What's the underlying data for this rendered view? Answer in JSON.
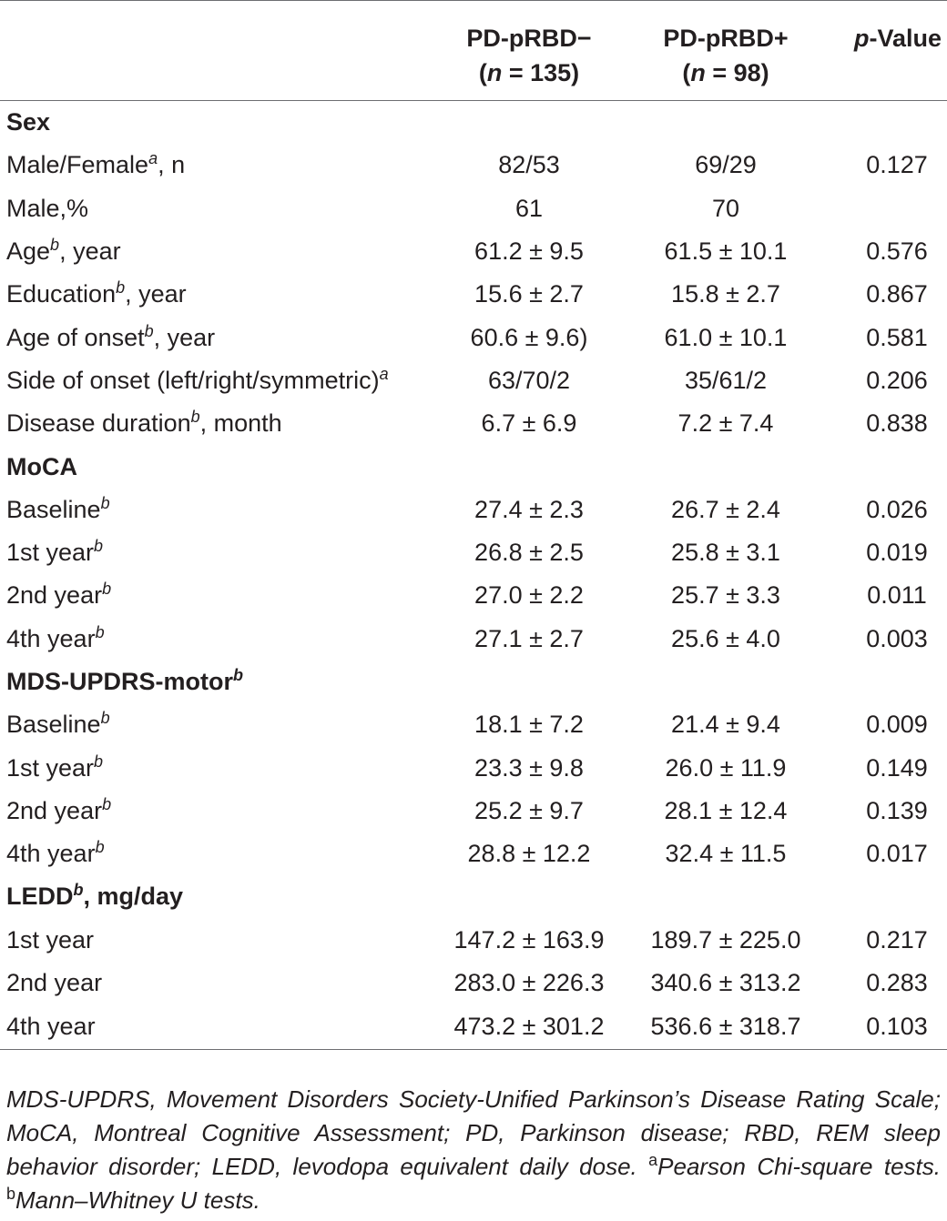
{
  "header": {
    "group1_line1": "PD-pRBD−",
    "group1_n_label": "n",
    "group1_n_value": " = 135)",
    "group2_line1": "PD-pRBD+",
    "group2_n_label": "n",
    "group2_n_value": " = 98)",
    "pvalue_italic": "p",
    "pvalue_rest": "-Value"
  },
  "rows": [
    {
      "type": "section",
      "label": "Sex",
      "sup": "",
      "suffix": ""
    },
    {
      "type": "data",
      "label": "Male/Female",
      "sup": "a",
      "suffix": ", n",
      "g1": "82/53",
      "g2": "69/29",
      "p": "0.127"
    },
    {
      "type": "data",
      "label": "Male,%",
      "sup": "",
      "suffix": "",
      "g1": "61",
      "g2": "70",
      "p": ""
    },
    {
      "type": "data",
      "label": "Age",
      "sup": "b",
      "suffix": ", year",
      "g1": "61.2 ± 9.5",
      "g2": "61.5 ± 10.1",
      "p": "0.576"
    },
    {
      "type": "data",
      "label": "Education",
      "sup": "b",
      "suffix": ", year",
      "g1": "15.6 ± 2.7",
      "g2": "15.8 ± 2.7",
      "p": "0.867"
    },
    {
      "type": "data",
      "label": "Age of onset",
      "sup": "b",
      "suffix": ", year",
      "g1": "60.6 ± 9.6)",
      "g2": "61.0 ± 10.1",
      "p": "0.581"
    },
    {
      "type": "data",
      "label": "Side of onset (left/right/symmetric)",
      "sup": "a",
      "suffix": "",
      "g1": "63/70/2",
      "g2": "35/61/2",
      "p": "0.206"
    },
    {
      "type": "data",
      "label": "Disease duration",
      "sup": "b",
      "suffix": ", month",
      "g1": "6.7 ± 6.9",
      "g2": "7.2 ± 7.4",
      "p": "0.838"
    },
    {
      "type": "section",
      "label": "MoCA",
      "sup": "",
      "suffix": ""
    },
    {
      "type": "data",
      "label": "Baseline",
      "sup": "b",
      "suffix": "",
      "g1": "27.4 ± 2.3",
      "g2": "26.7 ± 2.4",
      "p": "0.026"
    },
    {
      "type": "data",
      "label": "1st year",
      "sup": "b",
      "suffix": "",
      "g1": "26.8 ± 2.5",
      "g2": "25.8 ± 3.1",
      "p": "0.019"
    },
    {
      "type": "data",
      "label": "2nd year",
      "sup": "b",
      "suffix": "",
      "g1": "27.0 ± 2.2",
      "g2": "25.7 ± 3.3",
      "p": "0.011"
    },
    {
      "type": "data",
      "label": "4th year",
      "sup": "b",
      "suffix": "",
      "g1": "27.1 ± 2.7",
      "g2": "25.6 ± 4.0",
      "p": "0.003"
    },
    {
      "type": "section",
      "label": "MDS-UPDRS-motor",
      "sup": "b",
      "suffix": ""
    },
    {
      "type": "data",
      "label": "Baseline",
      "sup": "b",
      "suffix": "",
      "g1": "18.1 ± 7.2",
      "g2": "21.4 ± 9.4",
      "p": "0.009"
    },
    {
      "type": "data",
      "label": "1st year",
      "sup": "b",
      "suffix": "",
      "g1": "23.3 ± 9.8",
      "g2": "26.0 ± 11.9",
      "p": "0.149"
    },
    {
      "type": "data",
      "label": "2nd year",
      "sup": "b",
      "suffix": "",
      "g1": "25.2 ± 9.7",
      "g2": "28.1 ± 12.4",
      "p": "0.139"
    },
    {
      "type": "data",
      "label": "4th year",
      "sup": "b",
      "suffix": "",
      "g1": "28.8 ± 12.2",
      "g2": "32.4 ± 11.5",
      "p": "0.017"
    },
    {
      "type": "section",
      "label": "LEDD",
      "sup": "b",
      "suffix": ", mg/day"
    },
    {
      "type": "data",
      "label": "1st year",
      "sup": "",
      "suffix": "",
      "g1": "147.2 ± 163.9",
      "g2": "189.7 ± 225.0",
      "p": "0.217"
    },
    {
      "type": "data",
      "label": "2nd year",
      "sup": "",
      "suffix": "",
      "g1": "283.0 ± 226.3",
      "g2": "340.6 ± 313.2",
      "p": "0.283"
    },
    {
      "type": "data",
      "label": "4th year",
      "sup": "",
      "suffix": "",
      "g1": "473.2 ± 301.2",
      "g2": "536.6 ± 318.7",
      "p": "0.103"
    }
  ],
  "footnote": {
    "abbreviations": "MDS-UPDRS, Movement Disorders Society-Unified Parkinson’s Disease Rating Scale; MoCA, Montreal Cognitive Assessment; PD, Parkinson disease; RBD, REM sleep behavior disorder; LEDD, levodopa equivalent daily dose. ",
    "a_mark": "a",
    "a_text": "Pearson Chi-square tests. ",
    "b_mark": "b",
    "b_text": "Mann–Whitney U tests."
  }
}
